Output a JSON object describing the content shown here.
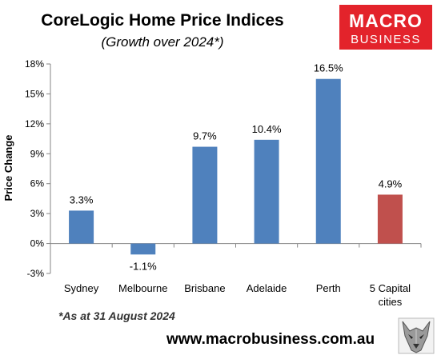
{
  "header": {
    "title": "CoreLogic Home Price Indices",
    "subtitle": "(Growth over 2024*)"
  },
  "logo": {
    "line1": "MACRO",
    "line2": "BUSINESS",
    "color": "#e3232b"
  },
  "footer": {
    "note": "*As at 31 August 2024",
    "url": "www.macrobusiness.com.au"
  },
  "colors": {
    "bar": "#4f81bd",
    "highlight": "#c0504d"
  },
  "chart_data": {
    "type": "bar",
    "title": "CoreLogic Home Price Indices",
    "subtitle": "(Growth over 2024*)",
    "xlabel": "",
    "ylabel": "Price Change",
    "categories": [
      "Sydney",
      "Melbourne",
      "Brisbane",
      "Adelaide",
      "Perth",
      "5 Capital cities"
    ],
    "category_lines": [
      [
        "Sydney"
      ],
      [
        "Melbourne"
      ],
      [
        "Brisbane"
      ],
      [
        "Adelaide"
      ],
      [
        "Perth"
      ],
      [
        "5 Capital",
        "cities"
      ]
    ],
    "values": [
      3.3,
      -1.1,
      9.7,
      10.4,
      16.5,
      4.9
    ],
    "data_labels": [
      "3.3%",
      "-1.1%",
      "9.7%",
      "10.4%",
      "16.5%",
      "4.9%"
    ],
    "highlight_index": 5,
    "ylim": [
      -3,
      18
    ],
    "yticks": [
      -3,
      0,
      3,
      6,
      9,
      12,
      15,
      18
    ],
    "ytick_labels": [
      "-3%",
      "0%",
      "3%",
      "6%",
      "9%",
      "12%",
      "15%",
      "18%"
    ],
    "grid": false,
    "legend": "none"
  }
}
